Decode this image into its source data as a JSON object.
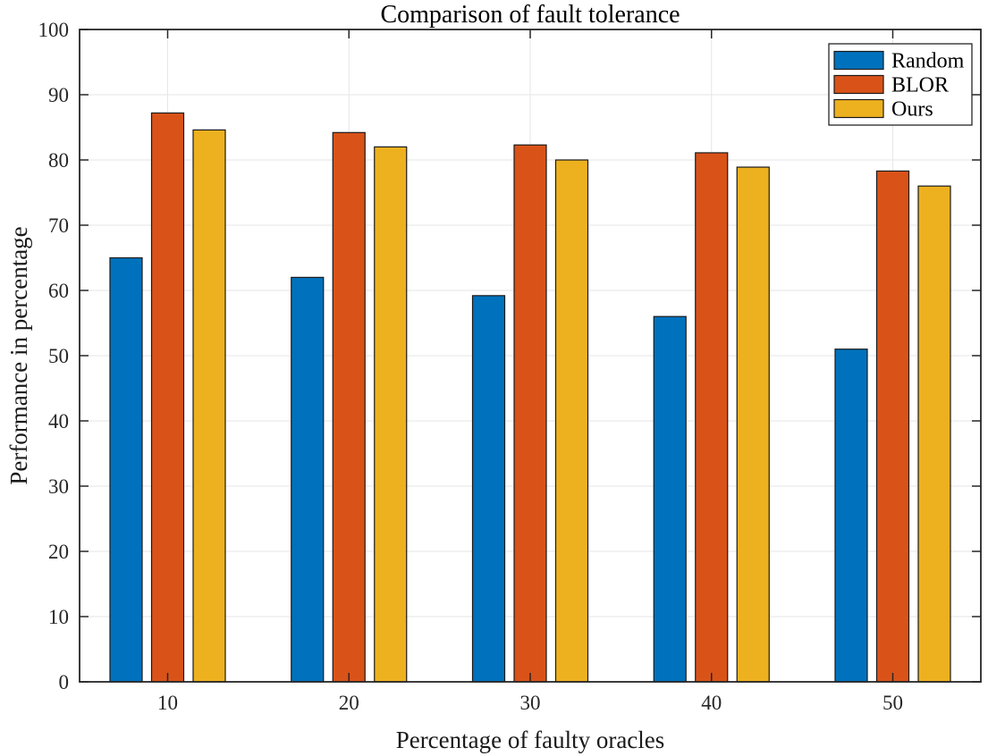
{
  "chart_data": {
    "type": "bar",
    "title": "Comparison of fault tolerance",
    "xlabel": "Percentage of faulty oracles",
    "ylabel": "Performance in percentage",
    "categories": [
      "10",
      "20",
      "30",
      "40",
      "50"
    ],
    "series": [
      {
        "name": "Random",
        "color": "#0072BD",
        "values": [
          65,
          62,
          59.2,
          56,
          51
        ]
      },
      {
        "name": "BLOR",
        "color": "#D95319",
        "values": [
          87.2,
          84.2,
          82.3,
          81.1,
          78.3
        ]
      },
      {
        "name": "Ours",
        "color": "#EDB120",
        "values": [
          84.6,
          82,
          80,
          78.9,
          76
        ]
      }
    ],
    "ylim": [
      0,
      100
    ],
    "ytick_step": 10,
    "ytick_labels": [
      "0",
      "10",
      "20",
      "30",
      "40",
      "50",
      "60",
      "70",
      "80",
      "90",
      "100"
    ],
    "grid": true,
    "legend_position": "top-right",
    "colors": {
      "bar_edge": "#1a1a1a",
      "axis": "#262626",
      "grid": "#e6e6e6",
      "background": "#ffffff",
      "legend_border": "#262626",
      "legend_background": "#ffffff"
    }
  }
}
